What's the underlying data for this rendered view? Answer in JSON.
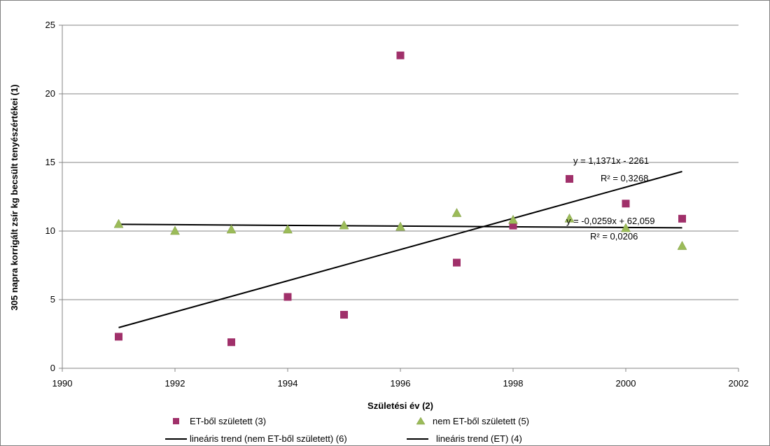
{
  "chart_data": {
    "type": "scatter",
    "title": "",
    "xlabel": "Születési év (2)",
    "ylabel": "305 napra korrigált zsír kg becsült tenyészértékei (1)",
    "xlim": [
      1990,
      2002
    ],
    "ylim": [
      0,
      25
    ],
    "x_ticks": [
      "1990",
      "1992",
      "1994",
      "1996",
      "1998",
      "2000",
      "2002"
    ],
    "y_ticks": [
      "0",
      "5",
      "10",
      "15",
      "20",
      "25"
    ],
    "grid": "horizontal",
    "legend_position": "bottom",
    "series": [
      {
        "name": "ET-ből született (3)",
        "marker": "square",
        "color": "#A0306A",
        "x": [
          1991,
          1993,
          1994,
          1995,
          1996,
          1997,
          1998,
          1999,
          2000,
          2001
        ],
        "y": [
          2.3,
          1.9,
          5.2,
          3.9,
          22.8,
          7.7,
          10.4,
          13.8,
          12.0,
          10.9
        ]
      },
      {
        "name": "nem ET-ből született (5)",
        "marker": "triangle",
        "color": "#9BBB59",
        "x": [
          1991,
          1992,
          1993,
          1994,
          1995,
          1996,
          1997,
          1998,
          1999,
          2000,
          2001
        ],
        "y": [
          10.5,
          10.0,
          10.1,
          10.1,
          10.4,
          10.3,
          11.3,
          10.8,
          10.9,
          10.2,
          8.9
        ]
      }
    ],
    "trendlines": [
      {
        "name": "lineáris trend (nem ET-ből született) (6)",
        "slope": -0.0259,
        "intercept": 62.059,
        "x_range": [
          1991,
          2001
        ],
        "equation": "y = -0,0259x + 62,059",
        "r2": "R² = 0,0206"
      },
      {
        "name": "lineáris trend (ET) (4)",
        "slope": 1.1371,
        "intercept": -2261,
        "x_range": [
          1991,
          2001
        ],
        "equation": "y = 1,1371x - 2261",
        "r2": "R² = 0,3268"
      }
    ]
  }
}
